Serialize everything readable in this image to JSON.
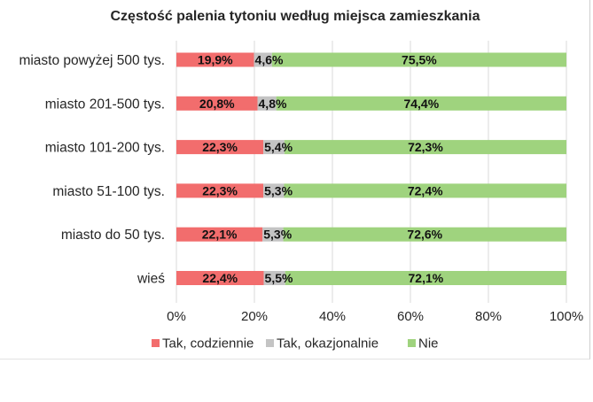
{
  "chart_data": {
    "type": "bar",
    "orientation": "horizontal",
    "stacked": true,
    "title": "Częstość palenia tytoniu według miejsca zamieszkania",
    "categories": [
      "miasto powyżej 500 tys.",
      "miasto 201-500 tys.",
      "miasto 101-200 tys.",
      "miasto 51-100 tys.",
      "miasto do 50 tys.",
      "wieś"
    ],
    "series": [
      {
        "name": "Tak, codziennie",
        "color": "#f26d6d",
        "values": [
          19.9,
          20.8,
          22.3,
          22.3,
          22.1,
          22.4
        ],
        "labels": [
          "19,9%",
          "20,8%",
          "22,3%",
          "22,3%",
          "22,1%",
          "22,4%"
        ]
      },
      {
        "name": "Tak, okazjonalnie",
        "color": "#c4c4c4",
        "values": [
          4.6,
          4.8,
          5.4,
          5.3,
          5.3,
          5.5
        ],
        "labels": [
          "4,6%",
          "4,8%",
          "5,4%",
          "5,3%",
          "5,3%",
          "5,5%"
        ]
      },
      {
        "name": "Nie",
        "color": "#9fd37e",
        "values": [
          75.5,
          74.4,
          72.3,
          72.4,
          72.6,
          72.1
        ],
        "labels": [
          "75,5%",
          "74,4%",
          "72,3%",
          "72,4%",
          "72,6%",
          "72,1%"
        ]
      }
    ],
    "xlim": [
      0,
      100
    ],
    "xticks": [
      0,
      20,
      40,
      60,
      80,
      100
    ],
    "xtick_labels": [
      "0%",
      "20%",
      "40%",
      "60%",
      "80%",
      "100%"
    ],
    "grid": true,
    "legend_position": "bottom"
  }
}
